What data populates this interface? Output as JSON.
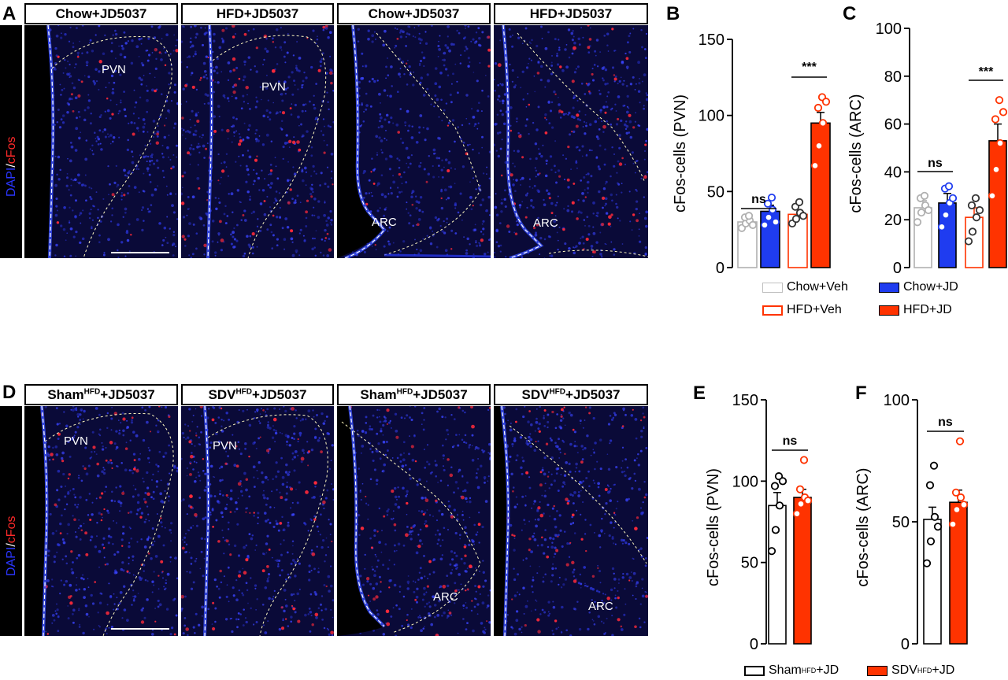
{
  "panels": {
    "A": "A",
    "B": "B",
    "C": "C",
    "D": "D",
    "E": "E",
    "F": "F"
  },
  "stain_label": {
    "dapi": "DAPI",
    "slash": "/",
    "cfos": "cFos"
  },
  "top_row": {
    "titles": [
      "Chow+JD5037",
      "HFD+JD5037",
      "Chow+JD5037",
      "HFD+JD5037"
    ],
    "regions": [
      "PVN",
      "PVN",
      "ARC",
      "ARC"
    ]
  },
  "bottom_row": {
    "titles": [
      {
        "main": "Sham",
        "sup": "HFD",
        "rest": "+JD5037"
      },
      {
        "main": "SDV",
        "sup": "HFD",
        "rest": "+JD5037"
      },
      {
        "main": "Sham",
        "sup": "HFD",
        "rest": "+JD5037"
      },
      {
        "main": "SDV",
        "sup": "HFD",
        "rest": "+JD5037"
      }
    ],
    "regions": [
      "PVN",
      "PVN",
      "ARC",
      "ARC"
    ]
  },
  "colors": {
    "chow_veh": "#b0b0b0",
    "chow_jd": "#1f3cf0",
    "hfd_veh": "#ff3300",
    "hfd_jd": "#ff3300",
    "sham": "#000000",
    "sdv": "#ff3300"
  },
  "legend_top": [
    "Chow+Veh",
    "Chow+JD",
    "HFD+Veh",
    "HFD+JD"
  ],
  "legend_bottom": [
    {
      "main": "Sham",
      "sup": "HFD",
      "rest": "+JD"
    },
    {
      "main": "SDV",
      "sup": "HFD",
      "rest": "+JD"
    }
  ],
  "chart_data": [
    {
      "panel": "B",
      "type": "bar",
      "ylabel": "cFos-cells (PVN)",
      "ylim": [
        0,
        150
      ],
      "yticks": [
        0,
        50,
        100,
        150
      ],
      "categories": [
        "Chow+Veh",
        "Chow+JD",
        "HFD+Veh",
        "HFD+JD"
      ],
      "values": [
        30,
        37,
        35,
        95
      ],
      "errors": [
        2,
        4,
        3,
        7
      ],
      "points": [
        [
          26,
          29,
          31,
          33,
          34,
          28
        ],
        [
          28,
          33,
          38,
          42,
          46,
          30
        ],
        [
          29,
          32,
          36,
          40,
          43,
          34
        ],
        [
          67,
          80,
          95,
          105,
          112,
          109
        ]
      ],
      "annotations": [
        {
          "text": "ns",
          "pair": [
            0,
            1
          ]
        },
        {
          "text": "***",
          "pair": [
            2,
            3
          ]
        }
      ]
    },
    {
      "panel": "C",
      "type": "bar",
      "ylabel": "cFos-cells (ARC)",
      "ylim": [
        0,
        100
      ],
      "yticks": [
        0,
        20,
        40,
        60,
        80,
        100
      ],
      "categories": [
        "Chow+Veh",
        "Chow+JD",
        "HFD+Veh",
        "HFD+JD"
      ],
      "values": [
        25,
        27,
        21,
        53
      ],
      "errors": [
        3,
        4,
        4,
        7
      ],
      "points": [
        [
          19,
          23,
          26,
          29,
          30,
          24
        ],
        [
          17,
          22,
          27,
          33,
          34,
          29
        ],
        [
          11,
          15,
          21,
          26,
          29,
          24
        ],
        [
          30,
          41,
          52,
          62,
          70,
          65
        ]
      ],
      "annotations": [
        {
          "text": "ns",
          "pair": [
            0,
            1
          ]
        },
        {
          "text": "***",
          "pair": [
            2,
            3
          ]
        }
      ]
    },
    {
      "panel": "E",
      "type": "bar",
      "ylabel": "cFos-cells (PVN)",
      "ylim": [
        0,
        150
      ],
      "yticks": [
        0,
        50,
        100,
        150
      ],
      "categories": [
        "Sham+JD",
        "SDV+JD"
      ],
      "values": [
        85,
        90
      ],
      "errors": [
        8,
        5
      ],
      "points": [
        [
          57,
          70,
          85,
          97,
          103,
          100
        ],
        [
          80,
          86,
          90,
          95,
          113,
          88
        ]
      ],
      "annotations": [
        {
          "text": "ns",
          "pair": [
            0,
            1
          ]
        }
      ]
    },
    {
      "panel": "F",
      "type": "bar",
      "ylabel": "cFos-cells (ARC)",
      "ylim": [
        0,
        100
      ],
      "yticks": [
        0,
        50,
        100
      ],
      "categories": [
        "Sham+JD",
        "SDV+JD"
      ],
      "values": [
        51,
        58
      ],
      "errors": [
        5,
        5
      ],
      "points": [
        [
          33,
          42,
          52,
          65,
          73,
          48
        ],
        [
          49,
          55,
          60,
          62,
          83,
          57
        ]
      ],
      "annotations": [
        {
          "text": "ns",
          "pair": [
            0,
            1
          ]
        }
      ]
    }
  ]
}
